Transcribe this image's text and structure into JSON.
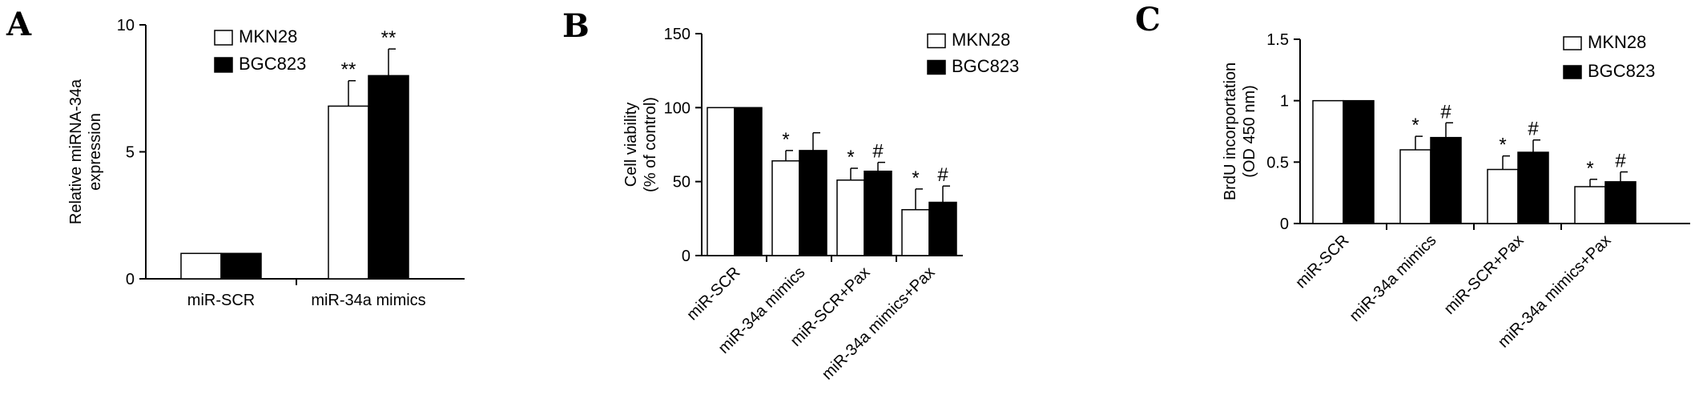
{
  "chart_data": [
    {
      "panel": "A",
      "type": "bar",
      "categories": [
        "miR-SCR",
        "miR-34a mimics"
      ],
      "ylabel": "Relative miRNA-34a expression",
      "ylabel_lines": [
        "Relative miRNA-34a",
        "expression"
      ],
      "ylim": [
        0,
        10
      ],
      "yticks": [
        0,
        5,
        10
      ],
      "ytick_labels": [
        "0",
        "5",
        "10"
      ],
      "rotate_xlabels": false,
      "legend": {
        "placement": "top-left"
      },
      "series": [
        {
          "name": "MKN28",
          "color": "#ffffff",
          "values": [
            1.0,
            6.8
          ],
          "errors": [
            0.03,
            1.0
          ],
          "annotations": [
            "",
            "**"
          ]
        },
        {
          "name": "BGC823",
          "color": "#000000",
          "values": [
            1.0,
            8.0
          ],
          "errors": [
            0.03,
            1.05
          ],
          "annotations": [
            "",
            "**"
          ]
        }
      ]
    },
    {
      "panel": "B",
      "type": "bar",
      "categories": [
        "miR-SCR",
        "miR-34a mimics",
        "miR-SCR+Pax",
        "miR-34a mimics+Pax"
      ],
      "ylabel": "Cell viability (% of control)",
      "ylabel_lines": [
        "Cell viability",
        "(% of control)"
      ],
      "ylim": [
        0,
        150
      ],
      "yticks": [
        0,
        50,
        100,
        150
      ],
      "ytick_labels": [
        "0",
        "50",
        "100",
        "150"
      ],
      "rotate_xlabels": true,
      "legend": {
        "placement": "top-right"
      },
      "series": [
        {
          "name": "MKN28",
          "color": "#ffffff",
          "values": [
            100,
            64,
            51,
            31
          ],
          "errors": [
            0.5,
            7,
            8,
            14
          ],
          "annotations": [
            "",
            "*",
            "*",
            "*"
          ]
        },
        {
          "name": "BGC823",
          "color": "#000000",
          "values": [
            100,
            71,
            57,
            36
          ],
          "errors": [
            0.5,
            12,
            6,
            11
          ],
          "annotations": [
            "",
            "",
            "#",
            "#"
          ]
        }
      ]
    },
    {
      "panel": "C",
      "type": "bar",
      "categories": [
        "miR-SCR",
        "miR-34a mimics",
        "miR-SCR+Pax",
        "miR-34a mimics+Pax"
      ],
      "ylabel": "BrdU incorportation (OD 450 nm)",
      "ylabel_lines": [
        "BrdU incorportation",
        "(OD 450 nm)"
      ],
      "ylim": [
        0,
        1.5
      ],
      "yticks": [
        0,
        0.5,
        1,
        1.5
      ],
      "ytick_labels": [
        "0",
        "0.5",
        "1",
        "1.5"
      ],
      "rotate_xlabels": true,
      "legend": {
        "placement": "top-right"
      },
      "series": [
        {
          "name": "MKN28",
          "color": "#ffffff",
          "values": [
            1.0,
            0.6,
            0.44,
            0.3
          ],
          "errors": [
            0.005,
            0.11,
            0.11,
            0.06
          ],
          "annotations": [
            "",
            "*",
            "*",
            "*"
          ]
        },
        {
          "name": "BGC823",
          "color": "#000000",
          "values": [
            1.0,
            0.7,
            0.58,
            0.34
          ],
          "errors": [
            0.005,
            0.12,
            0.1,
            0.08
          ],
          "annotations": [
            "",
            "#",
            "#",
            "#"
          ]
        }
      ]
    }
  ]
}
